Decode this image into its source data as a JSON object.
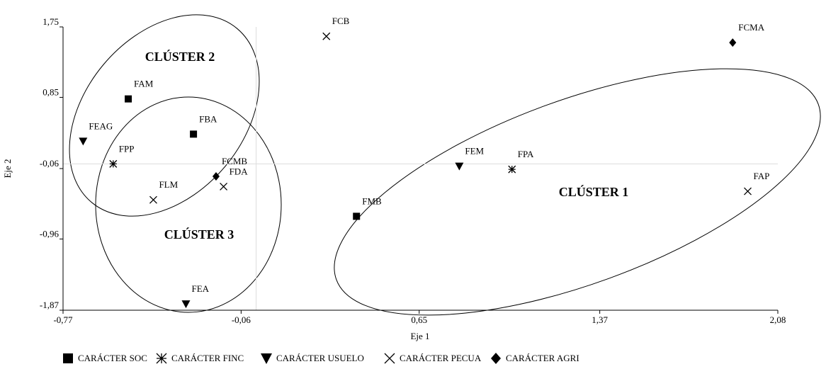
{
  "chart_data": {
    "type": "scatter",
    "xlabel": "Eje 1",
    "ylabel": "Eje 2",
    "xlim": [
      -0.77,
      2.08
    ],
    "xticks": [
      {
        "value": -0.77,
        "label": "-0,77"
      },
      {
        "value": -0.06,
        "label": "-0,06"
      },
      {
        "value": 0.65,
        "label": "0,65"
      },
      {
        "value": 1.37,
        "label": "1,37"
      },
      {
        "value": 2.08,
        "label": "2,08"
      }
    ],
    "ylim": [
      -1.87,
      1.75
    ],
    "yticks": [
      {
        "value": -1.87,
        "label": "-1,87"
      },
      {
        "value": -0.96,
        "label": "-0,96"
      },
      {
        "value": -0.06,
        "label": "-0,06"
      },
      {
        "value": 0.85,
        "label": "0,85"
      },
      {
        "value": 1.75,
        "label": "1,75"
      }
    ],
    "reference_lines": {
      "x": 0,
      "y": 0
    },
    "legend": "bottom",
    "annotations": [
      "CLÚSTER 1",
      "CLÚSTER 2",
      "CLÚSTER 3"
    ],
    "series": [
      {
        "name": "CARÁCTER SOC",
        "marker": "square",
        "color": "#000",
        "labels": [
          "FAM",
          "FBA",
          "FMB"
        ],
        "x": [
          -0.51,
          -0.25,
          0.4
        ],
        "values": [
          0.83,
          0.38,
          -0.67
        ]
      },
      {
        "name": "CARÁCTER FINC",
        "marker": "asterisk",
        "color": "#000",
        "labels": [
          "FPP",
          "FPA"
        ],
        "x": [
          -0.57,
          1.02
        ],
        "values": [
          0.0,
          -0.07
        ]
      },
      {
        "name": "CARÁCTER USUELO",
        "marker": "triangle-down",
        "color": "#000",
        "labels": [
          "FEAG",
          "FEM",
          "FEA"
        ],
        "x": [
          -0.69,
          0.81,
          -0.28
        ],
        "values": [
          0.29,
          -0.03,
          -1.79
        ]
      },
      {
        "name": "CARÁCTER PECUA",
        "marker": "x",
        "color": "#000",
        "labels": [
          "FCB",
          "FLM",
          "FDA",
          "FAP"
        ],
        "x": [
          0.28,
          -0.41,
          -0.13,
          1.96
        ],
        "values": [
          1.63,
          -0.46,
          -0.29,
          -0.35
        ]
      },
      {
        "name": "CARÁCTER AGRI",
        "marker": "diamond",
        "color": "#000",
        "labels": [
          "FCMB",
          "FCMA"
        ],
        "x": [
          -0.16,
          1.9
        ],
        "values": [
          -0.16,
          1.55
        ]
      }
    ]
  }
}
